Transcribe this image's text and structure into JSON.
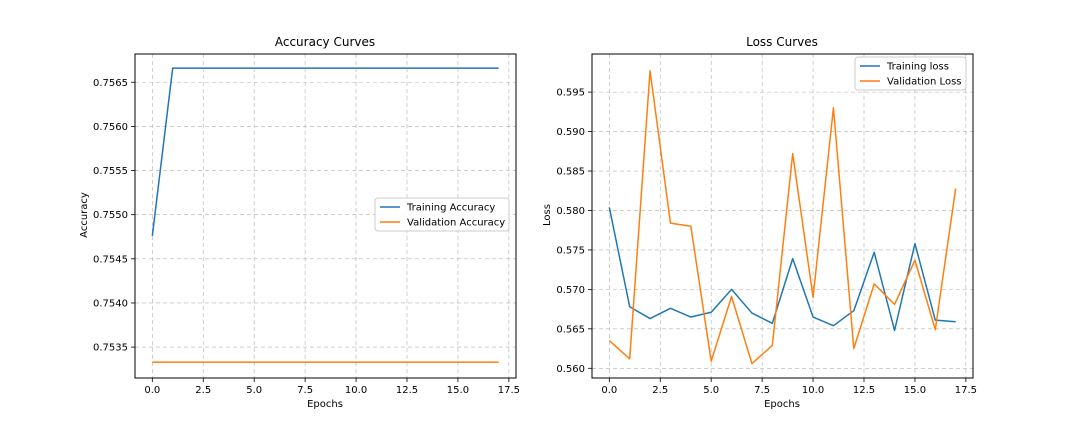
{
  "chart_data": [
    {
      "type": "line",
      "title": "Accuracy Curves",
      "xlabel": "Epochs",
      "ylabel": "Accuracy",
      "xlim": [
        -0.85,
        17.85
      ],
      "ylim": [
        0.75315,
        0.75682
      ],
      "xticks": [
        0,
        2.5,
        5,
        7.5,
        10,
        12.5,
        15,
        17.5
      ],
      "xtick_labels": [
        "0.0",
        "2.5",
        "5.0",
        "7.5",
        "10.0",
        "12.5",
        "15.0",
        "17.5"
      ],
      "yticks": [
        0.7535,
        0.754,
        0.7545,
        0.755,
        0.7555,
        0.756,
        0.7565
      ],
      "ytick_labels": [
        "0.7535",
        "0.7540",
        "0.7545",
        "0.7550",
        "0.7555",
        "0.7560",
        "0.7565"
      ],
      "grid": true,
      "legend": "center-right",
      "x": [
        0,
        1,
        2,
        3,
        4,
        5,
        6,
        7,
        8,
        9,
        10,
        11,
        12,
        13,
        14,
        15,
        16,
        17
      ],
      "series": [
        {
          "name": "Training Accuracy",
          "color": "#1f77b4",
          "values": [
            0.75476,
            0.75666,
            0.75666,
            0.75666,
            0.75666,
            0.75666,
            0.75666,
            0.75666,
            0.75666,
            0.75666,
            0.75666,
            0.75666,
            0.75666,
            0.75666,
            0.75666,
            0.75666,
            0.75666,
            0.75666
          ]
        },
        {
          "name": "Validation Accuracy",
          "color": "#ff7f0e",
          "values": [
            0.75333,
            0.75333,
            0.75333,
            0.75333,
            0.75333,
            0.75333,
            0.75333,
            0.75333,
            0.75333,
            0.75333,
            0.75333,
            0.75333,
            0.75333,
            0.75333,
            0.75333,
            0.75333,
            0.75333,
            0.75333
          ]
        }
      ]
    },
    {
      "type": "line",
      "title": "Loss Curves",
      "xlabel": "Epochs",
      "ylabel": "Loss",
      "xlim": [
        -0.85,
        17.85
      ],
      "ylim": [
        0.55877,
        0.59983
      ],
      "xticks": [
        0,
        2.5,
        5,
        7.5,
        10,
        12.5,
        15,
        17.5
      ],
      "xtick_labels": [
        "0.0",
        "2.5",
        "5.0",
        "7.5",
        "10.0",
        "12.5",
        "15.0",
        "17.5"
      ],
      "yticks": [
        0.56,
        0.565,
        0.57,
        0.575,
        0.58,
        0.585,
        0.59,
        0.595
      ],
      "ytick_labels": [
        "0.560",
        "0.565",
        "0.570",
        "0.575",
        "0.580",
        "0.585",
        "0.590",
        "0.595"
      ],
      "grid": true,
      "legend": "top-right",
      "x": [
        0,
        1,
        2,
        3,
        4,
        5,
        6,
        7,
        8,
        9,
        10,
        11,
        12,
        13,
        14,
        15,
        16,
        17
      ],
      "series": [
        {
          "name": "Training loss",
          "color": "#1f77b4",
          "values": [
            0.5804,
            0.5678,
            0.5663,
            0.5676,
            0.5665,
            0.5671,
            0.57,
            0.567,
            0.5657,
            0.5739,
            0.5665,
            0.5654,
            0.5673,
            0.5747,
            0.5648,
            0.5758,
            0.5661,
            0.5659
          ]
        },
        {
          "name": "Validation Loss",
          "color": "#ff7f0e",
          "values": [
            0.5635,
            0.5612,
            0.5977,
            0.5784,
            0.578,
            0.5609,
            0.5691,
            0.5606,
            0.5629,
            0.5872,
            0.569,
            0.593,
            0.5625,
            0.5707,
            0.5681,
            0.5737,
            0.5649,
            0.5828
          ]
        }
      ]
    }
  ]
}
